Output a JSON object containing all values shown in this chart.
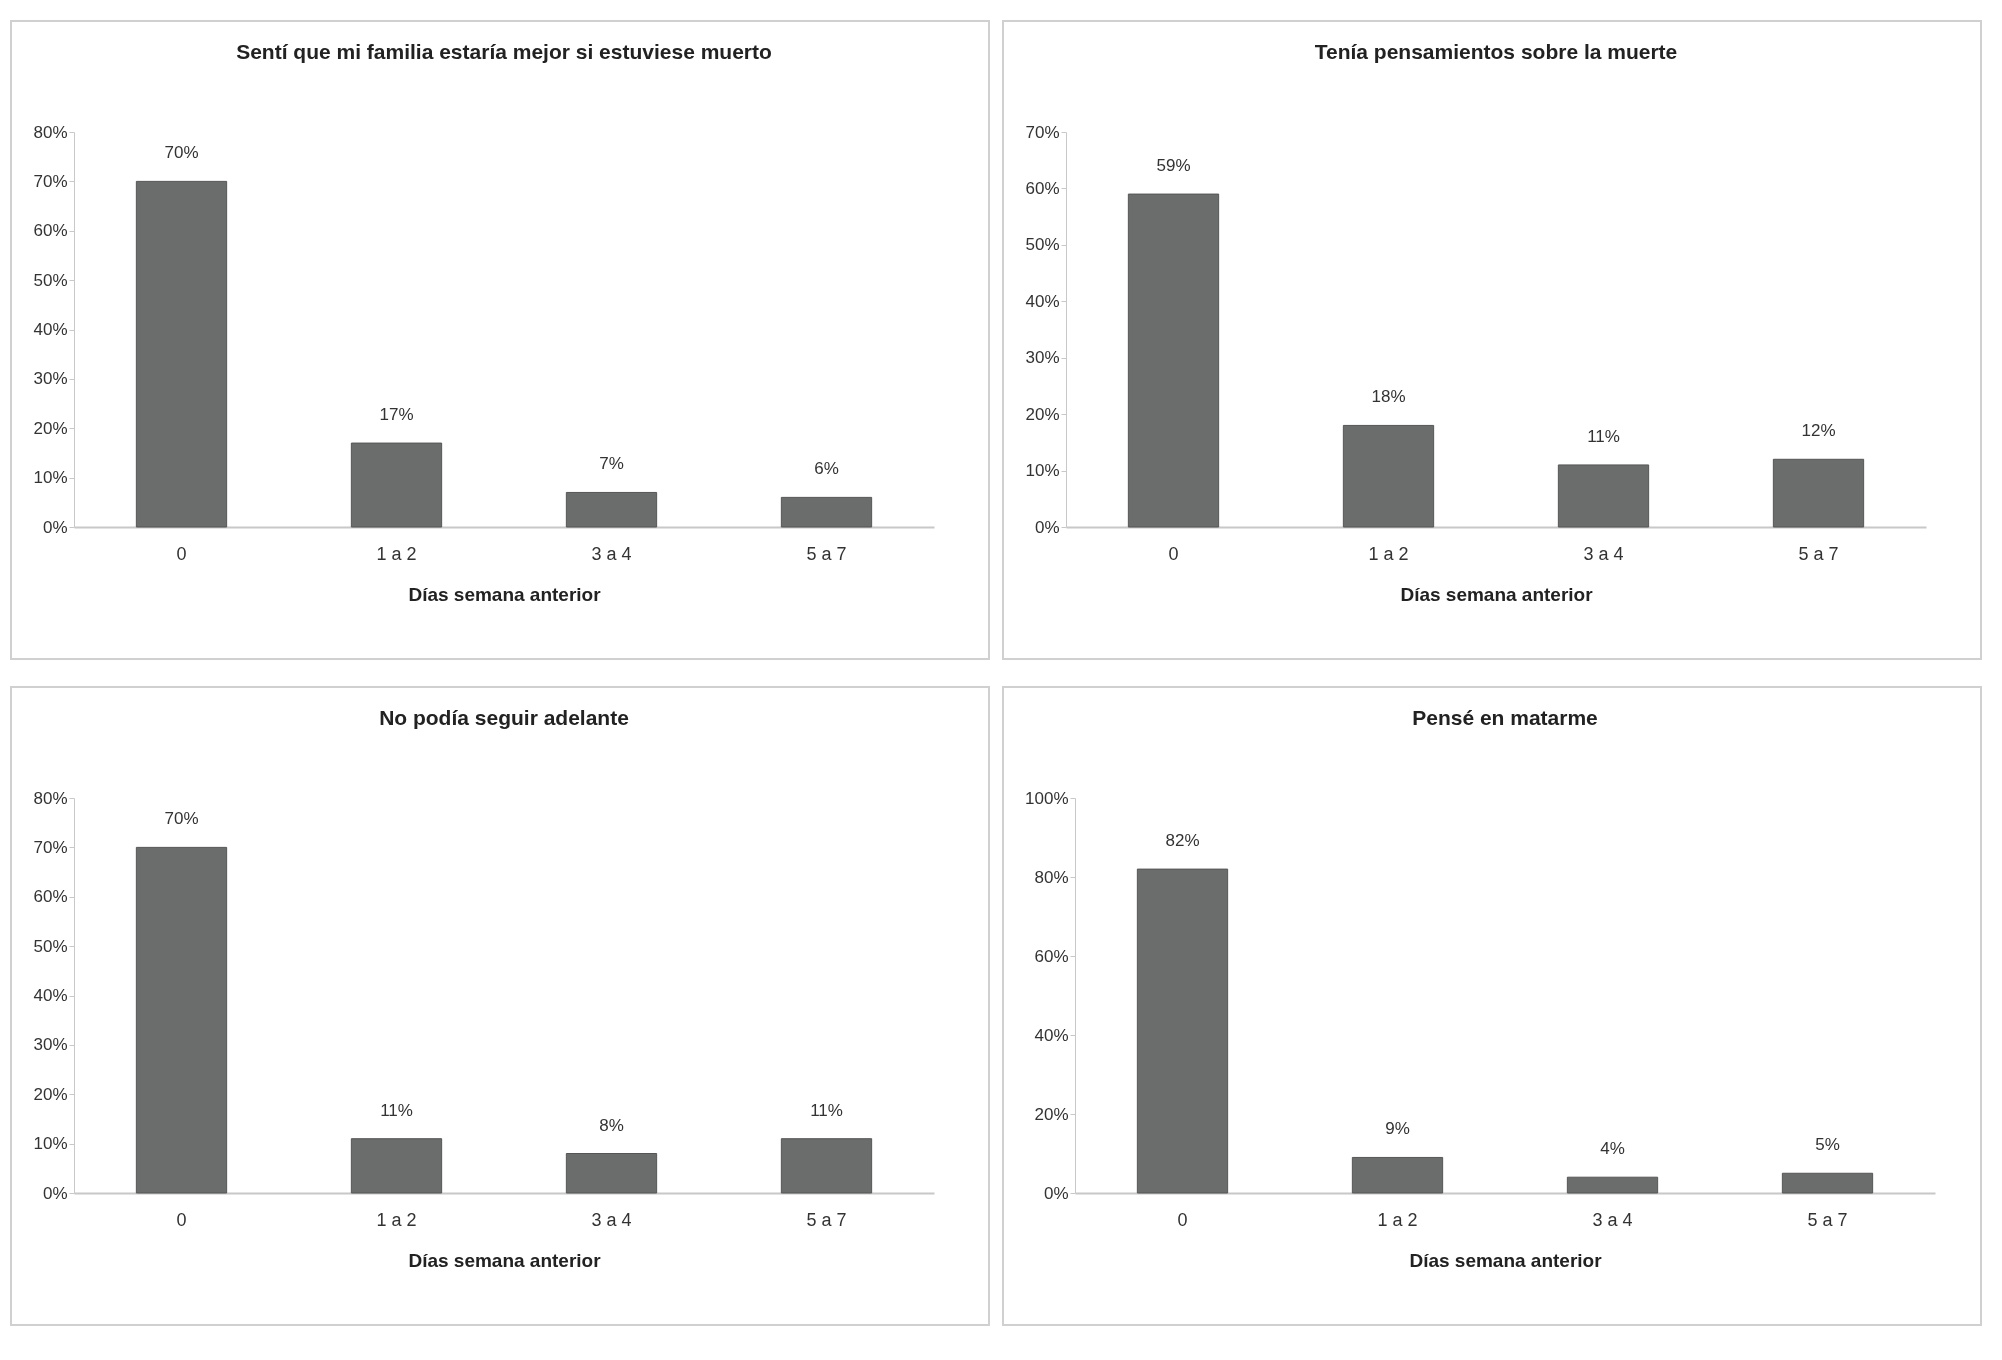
{
  "chart_data": [
    {
      "type": "bar",
      "title": "Sentí que mi familia estaría mejor si estuviese muerto",
      "xlabel": "Días semana anterior",
      "categories": [
        "0",
        "1 a 2",
        "3 a 4",
        "5 a 7"
      ],
      "values": [
        70,
        17,
        7,
        6
      ],
      "value_labels": [
        "70%",
        "17%",
        "7%",
        "6%"
      ],
      "color": "#6b6d6c",
      "ylim": [
        0,
        80
      ],
      "yticks": [
        {
          "value": 0,
          "label": "0%"
        },
        {
          "value": 10,
          "label": "10%"
        },
        {
          "value": 20,
          "label": "20%"
        },
        {
          "value": 30,
          "label": "30%"
        },
        {
          "value": 40,
          "label": "40%"
        },
        {
          "value": 50,
          "label": "50%"
        },
        {
          "value": 60,
          "label": "60%"
        },
        {
          "value": 70,
          "label": "70%"
        },
        {
          "value": 80,
          "label": "80%"
        }
      ]
    },
    {
      "type": "bar",
      "title": "Tenía pensamientos sobre la muerte",
      "xlabel": "Días semana anterior",
      "categories": [
        "0",
        "1 a 2",
        "3 a 4",
        "5 a 7"
      ],
      "values": [
        59,
        18,
        11,
        12
      ],
      "value_labels": [
        "59%",
        "18%",
        "11%",
        "12%"
      ],
      "color": "#6b6d6c",
      "ylim": [
        0,
        70
      ],
      "yticks": [
        {
          "value": 0,
          "label": "0%"
        },
        {
          "value": 10,
          "label": "10%"
        },
        {
          "value": 20,
          "label": "20%"
        },
        {
          "value": 30,
          "label": "30%"
        },
        {
          "value": 40,
          "label": "40%"
        },
        {
          "value": 50,
          "label": "50%"
        },
        {
          "value": 60,
          "label": "60%"
        },
        {
          "value": 70,
          "label": "70%"
        }
      ]
    },
    {
      "type": "bar",
      "title": "No podía seguir adelante",
      "xlabel": "Días semana anterior",
      "categories": [
        "0",
        "1 a 2",
        "3 a 4",
        "5 a 7"
      ],
      "values": [
        70,
        11,
        8,
        11
      ],
      "value_labels": [
        "70%",
        "11%",
        "8%",
        "11%"
      ],
      "color": "#6b6d6c",
      "ylim": [
        0,
        80
      ],
      "yticks": [
        {
          "value": 0,
          "label": "0%"
        },
        {
          "value": 10,
          "label": "10%"
        },
        {
          "value": 20,
          "label": "20%"
        },
        {
          "value": 30,
          "label": "30%"
        },
        {
          "value": 40,
          "label": "40%"
        },
        {
          "value": 50,
          "label": "50%"
        },
        {
          "value": 60,
          "label": "60%"
        },
        {
          "value": 70,
          "label": "70%"
        },
        {
          "value": 80,
          "label": "80%"
        }
      ]
    },
    {
      "type": "bar",
      "title": "Pensé en matarme",
      "xlabel": "Días semana anterior",
      "categories": [
        "0",
        "1 a 2",
        "3 a 4",
        "5 a 7"
      ],
      "values": [
        82,
        9,
        4,
        5
      ],
      "value_labels": [
        "82%",
        "9%",
        "4%",
        "5%"
      ],
      "color": "#6b6d6c",
      "ylim": [
        0,
        100
      ],
      "yticks": [
        {
          "value": 0,
          "label": "0%"
        },
        {
          "value": 20,
          "label": "20%"
        },
        {
          "value": 40,
          "label": "40%"
        },
        {
          "value": 60,
          "label": "60%"
        },
        {
          "value": 80,
          "label": "80%"
        },
        {
          "value": 100,
          "label": "100%"
        }
      ]
    }
  ]
}
